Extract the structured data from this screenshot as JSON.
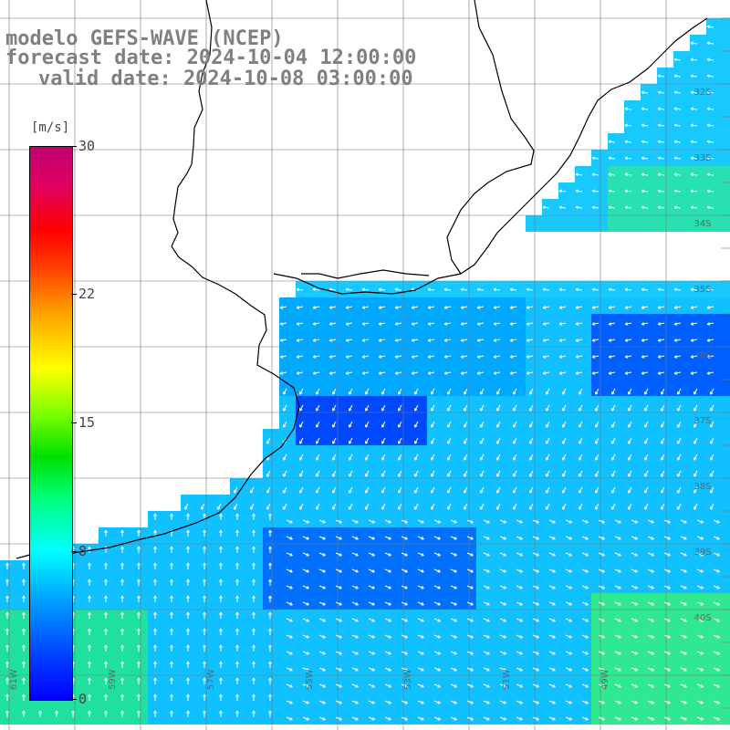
{
  "title": {
    "line1": "modelo GEFS-WAVE (NCEP)",
    "line2": "forecast date: 2024-10-04 12:00:00",
    "line3": "valid date: 2024-10-08 03:00:00"
  },
  "colorbar": {
    "unit": "[m/s]",
    "ticks": [
      {
        "label": "30",
        "value": 30
      },
      {
        "label": "22",
        "value": 22
      },
      {
        "label": "15",
        "value": 15
      },
      {
        "label": "8",
        "value": 8
      },
      {
        "label": "0",
        "value": 0
      }
    ],
    "min": 0,
    "max": 30,
    "colors": [
      "#0000ff",
      "#00a0ff",
      "#00ffff",
      "#00e000",
      "#ffff00",
      "#ff0000",
      "#c0006f"
    ]
  },
  "map": {
    "land_color": "#ffffff",
    "ocean_base_color": "#20c8ff",
    "coastline_color": "#000000",
    "arrow_color": "#ffffff",
    "lat_labels": [
      "32S",
      "33S",
      "34S",
      "35S",
      "36S",
      "37S",
      "38S",
      "39S",
      "40S"
    ],
    "lon_labels": [
      "61W",
      "59W",
      "57W",
      "55W",
      "53W",
      "51W",
      "49W"
    ]
  }
}
